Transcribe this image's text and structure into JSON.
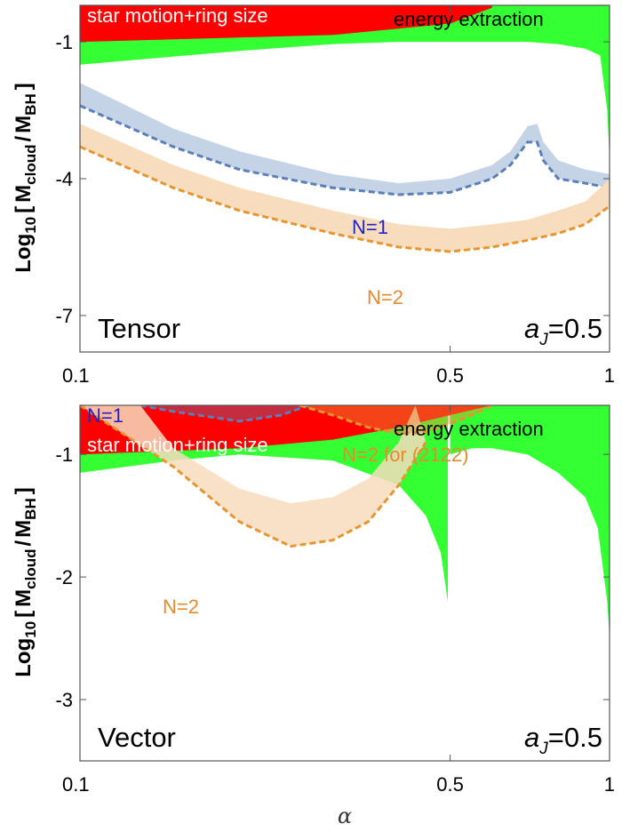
{
  "colors": {
    "green": "#33ff33",
    "red": "#ff0000",
    "blue_band": "#c5d3e6",
    "blue_line": "#5b7fb8",
    "orange_band": "#f7dcbd",
    "orange_line": "#e69530",
    "blue_text": "#2222cc",
    "orange_text": "#e68a2e"
  },
  "chart_data": [
    {
      "type": "area",
      "name": "tensor",
      "panel_label": "Tensor",
      "spin_label_main": "a",
      "spin_label_sub": "J",
      "spin_label_value": "=0.5",
      "xlabel": "α",
      "ylabel_prefix": "Log",
      "ylabel_sub10": "10",
      "ylabel_open": "[",
      "ylabel_M1": "M",
      "ylabel_sub_cloud": "cloud",
      "ylabel_slash": "/",
      "ylabel_M2": "M",
      "ylabel_sub_bh": "BH",
      "ylabel_close": "]",
      "xlim": [
        0.1,
        1.0
      ],
      "ylim": [
        -7.8,
        -0.2
      ],
      "xticks": [
        0.1,
        0.5,
        1.0
      ],
      "xtick_labels": [
        "0.1",
        "0.5",
        "1"
      ],
      "yticks": [
        -1,
        -4,
        -7
      ],
      "ytick_labels": [
        "-1",
        "-4",
        "-7"
      ],
      "regions": [
        {
          "name": "energy extraction",
          "label": "energy extraction",
          "color": "green",
          "lower": [
            [
              0.1,
              -1.5
            ],
            [
              0.2,
              -1.2
            ],
            [
              0.3,
              -1.05
            ],
            [
              0.4,
              -1.0
            ],
            [
              0.5,
              -1.0
            ],
            [
              0.6,
              -1.0
            ],
            [
              0.7,
              -1.0
            ],
            [
              0.8,
              -1.05
            ],
            [
              0.9,
              -1.15
            ],
            [
              0.96,
              -1.3
            ],
            [
              0.99,
              -2.5
            ],
            [
              1.0,
              -3.6
            ]
          ],
          "upper": -0.2
        },
        {
          "name": "star motion+ring size",
          "label": "star motion+ring size",
          "color": "red",
          "lower": [
            [
              0.1,
              -1.0
            ],
            [
              0.3,
              -0.85
            ],
            [
              0.5,
              -0.6
            ],
            [
              0.6,
              -0.25
            ]
          ],
          "upper": -0.2
        }
      ],
      "series": [
        {
          "name": "N=1",
          "label": "N=1",
          "color": "blue",
          "lower": [
            [
              0.1,
              -2.4
            ],
            [
              0.15,
              -3.3
            ],
            [
              0.2,
              -3.8
            ],
            [
              0.3,
              -4.2
            ],
            [
              0.4,
              -4.35
            ],
            [
              0.5,
              -4.3
            ],
            [
              0.6,
              -4.0
            ],
            [
              0.65,
              -3.7
            ],
            [
              0.7,
              -3.2
            ],
            [
              0.73,
              -3.2
            ],
            [
              0.75,
              -3.6
            ],
            [
              0.8,
              -4.0
            ],
            [
              0.9,
              -4.1
            ],
            [
              1.0,
              -4.2
            ]
          ],
          "upper": [
            [
              0.1,
              -1.9
            ],
            [
              0.15,
              -2.9
            ],
            [
              0.2,
              -3.4
            ],
            [
              0.3,
              -3.9
            ],
            [
              0.4,
              -4.1
            ],
            [
              0.5,
              -4.0
            ],
            [
              0.6,
              -3.7
            ],
            [
              0.65,
              -3.4
            ],
            [
              0.7,
              -2.85
            ],
            [
              0.73,
              -2.8
            ],
            [
              0.75,
              -3.2
            ],
            [
              0.8,
              -3.6
            ],
            [
              0.9,
              -3.8
            ],
            [
              1.0,
              -3.9
            ]
          ]
        },
        {
          "name": "N=2",
          "label": "N=2",
          "color": "orange",
          "lower": [
            [
              0.1,
              -3.3
            ],
            [
              0.15,
              -4.2
            ],
            [
              0.2,
              -4.7
            ],
            [
              0.3,
              -5.2
            ],
            [
              0.4,
              -5.5
            ],
            [
              0.5,
              -5.6
            ],
            [
              0.6,
              -5.5
            ],
            [
              0.7,
              -5.35
            ],
            [
              0.8,
              -5.2
            ],
            [
              0.9,
              -5.0
            ],
            [
              1.0,
              -4.6
            ]
          ],
          "upper": [
            [
              0.1,
              -2.8
            ],
            [
              0.15,
              -3.7
            ],
            [
              0.2,
              -4.2
            ],
            [
              0.3,
              -4.7
            ],
            [
              0.4,
              -5.0
            ],
            [
              0.5,
              -5.1
            ],
            [
              0.6,
              -5.0
            ],
            [
              0.7,
              -4.9
            ],
            [
              0.8,
              -4.7
            ],
            [
              0.9,
              -4.5
            ],
            [
              1.0,
              -4.0
            ]
          ]
        }
      ]
    },
    {
      "type": "area",
      "name": "vector",
      "panel_label": "Vector",
      "spin_label_main": "a",
      "spin_label_sub": "J",
      "spin_label_value": "=0.5",
      "xlabel": "α",
      "xlim": [
        0.1,
        1.0
      ],
      "ylim": [
        -3.5,
        -0.6
      ],
      "xticks": [
        0.1,
        0.5,
        1.0
      ],
      "xtick_labels": [
        "0.1",
        "0.5",
        "1"
      ],
      "yticks": [
        -1,
        -2,
        -3
      ],
      "ytick_labels": [
        "-1",
        "-2",
        "-3"
      ],
      "regions": [
        {
          "name": "energy extraction (alpha below 0.5)",
          "label": "energy extraction",
          "color": "green",
          "lower": [
            [
              0.1,
              -1.15
            ],
            [
              0.15,
              -1.05
            ],
            [
              0.2,
              -1.0
            ],
            [
              0.3,
              -1.05
            ],
            [
              0.4,
              -1.25
            ],
            [
              0.45,
              -1.5
            ],
            [
              0.48,
              -1.8
            ],
            [
              0.495,
              -2.2
            ]
          ],
          "upper": -0.6
        },
        {
          "name": "energy extraction (alpha above 0.5)",
          "color": "green",
          "lower": [
            [
              0.5,
              -1.0
            ],
            [
              0.55,
              -0.95
            ],
            [
              0.6,
              -0.95
            ],
            [
              0.7,
              -1.0
            ],
            [
              0.8,
              -1.15
            ],
            [
              0.9,
              -1.35
            ],
            [
              0.95,
              -1.6
            ],
            [
              0.99,
              -2.2
            ],
            [
              1.0,
              -2.5
            ]
          ],
          "upper": -0.6
        },
        {
          "name": "star motion+ring size",
          "label": "star motion+ring size",
          "color": "red",
          "lower": [
            [
              0.1,
              -1.0
            ],
            [
              0.2,
              -0.95
            ],
            [
              0.3,
              -0.88
            ],
            [
              0.4,
              -0.78
            ],
            [
              0.5,
              -0.68
            ],
            [
              0.6,
              -0.6
            ]
          ],
          "upper": -0.6
        }
      ],
      "series": [
        {
          "name": "N=1",
          "label": "N=1",
          "color": "blue",
          "lower": [
            [
              0.13,
              -0.6
            ],
            [
              0.15,
              -0.65
            ],
            [
              0.2,
              -0.73
            ],
            [
              0.24,
              -0.68
            ],
            [
              0.27,
              -0.6
            ]
          ],
          "upper": -0.6
        },
        {
          "name": "N=2",
          "label": "N=2",
          "color": "orange",
          "lower": [
            [
              0.1,
              -0.6
            ],
            [
              0.15,
              -1.1
            ],
            [
              0.2,
              -1.55
            ],
            [
              0.25,
              -1.75
            ],
            [
              0.3,
              -1.7
            ],
            [
              0.35,
              -1.55
            ],
            [
              0.4,
              -1.25
            ],
            [
              0.45,
              -0.9
            ]
          ],
          "upper": [
            [
              0.13,
              -0.6
            ],
            [
              0.15,
              -0.95
            ],
            [
              0.2,
              -1.28
            ],
            [
              0.25,
              -1.4
            ],
            [
              0.3,
              -1.35
            ],
            [
              0.35,
              -1.2
            ],
            [
              0.4,
              -0.9
            ],
            [
              0.43,
              -0.6
            ]
          ]
        },
        {
          "name": "N=2 for (2122)",
          "label": "N=2 for (2122)",
          "color": "orange",
          "lower": [
            [
              0.26,
              -0.6
            ],
            [
              0.3,
              -0.68
            ],
            [
              0.35,
              -0.78
            ],
            [
              0.4,
              -0.83
            ],
            [
              0.45,
              -0.82
            ],
            [
              0.5,
              -0.75
            ],
            [
              0.55,
              -0.68
            ],
            [
              0.6,
              -0.6
            ]
          ],
          "upper": -0.6
        }
      ]
    }
  ]
}
